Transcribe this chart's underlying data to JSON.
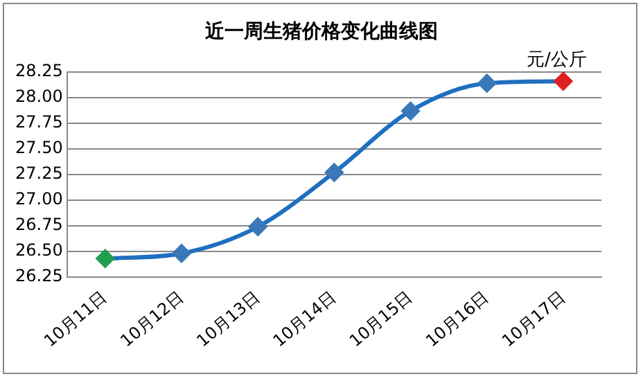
{
  "chart_data": {
    "type": "line",
    "title": "近一周生猪价格变化曲线图",
    "annotations": [
      "元/公斤"
    ],
    "categories": [
      "10月11日",
      "10月12日",
      "10月13日",
      "10月14日",
      "10月15日",
      "10月16日",
      "10月17日"
    ],
    "series": [
      {
        "color": "#1f6fc0",
        "colors": [
          "#1fa050",
          "#3a78b8",
          "#3a78b8",
          "#3a78b8",
          "#3a78b8",
          "#3a78b8",
          "#e02020"
        ],
        "values": [
          26.43,
          26.48,
          26.74,
          27.27,
          27.87,
          28.14,
          28.16
        ]
      }
    ],
    "ylim": [
      26.25,
      28.25
    ],
    "yticks": [
      26.25,
      {
        "value": 26.5,
        "label": "26.50"
      },
      26.75,
      {
        "value": 27,
        "label": "27.00"
      },
      27.25,
      {
        "value": 27.5,
        "label": "27.50"
      },
      27.75,
      {
        "value": 28,
        "label": "28.00"
      },
      28.25
    ],
    "grid": "y",
    "legend": false,
    "marker": "diamond",
    "line_style": "solid"
  }
}
